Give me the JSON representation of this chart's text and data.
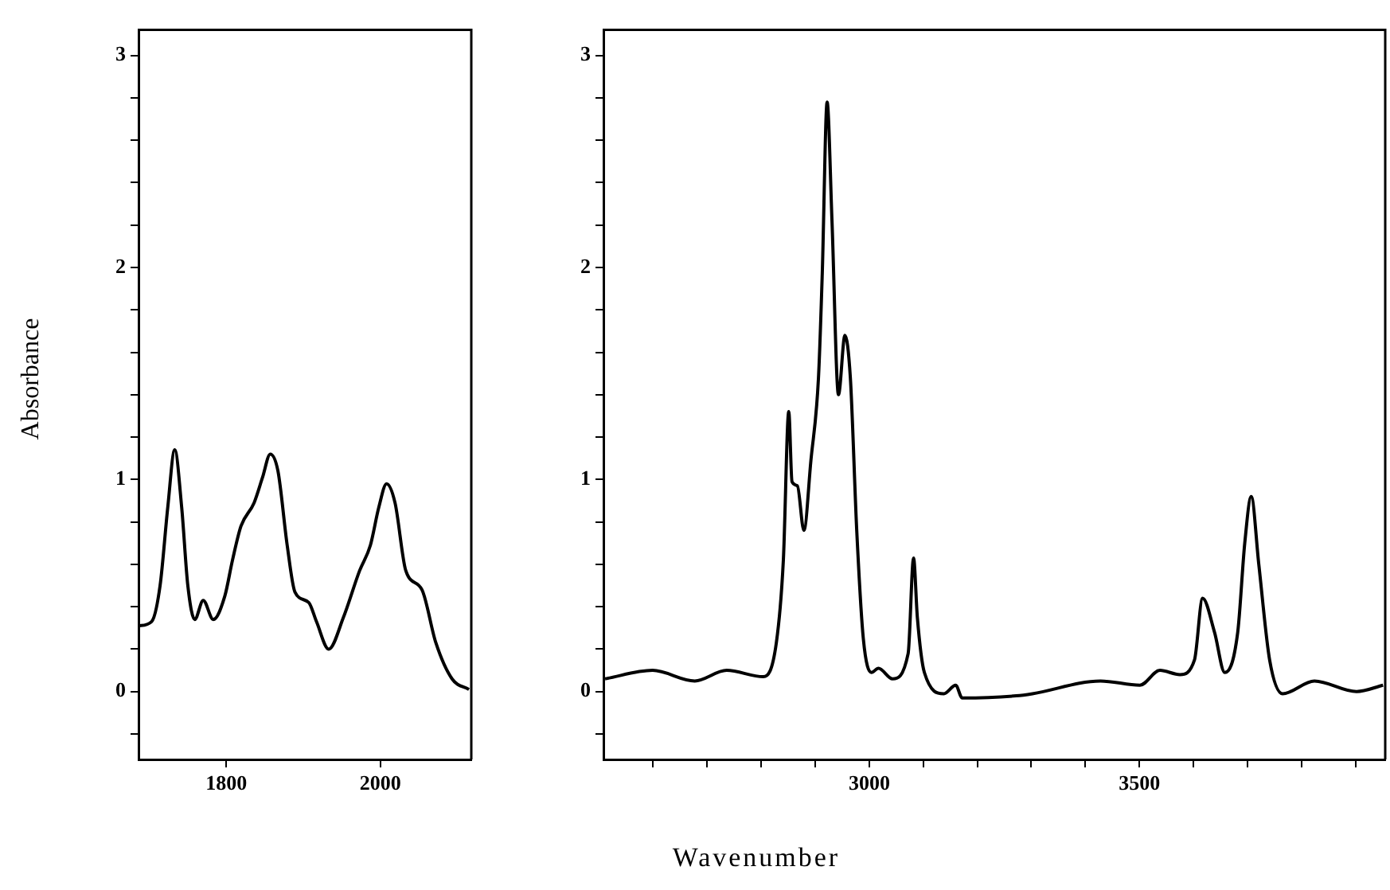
{
  "chart_data": [
    {
      "type": "line",
      "ylabel": "Absorbance",
      "color": "#000000",
      "marker": "none",
      "grid": false,
      "xlim": [
        1686,
        2118
      ],
      "xticks": [
        1800,
        2000
      ],
      "ylim": [
        -0.32,
        3.12
      ],
      "yticks": [
        {
          "value": -0.2,
          "label": null
        },
        0,
        {
          "value": 0.2,
          "label": null
        },
        {
          "value": 0.4,
          "label": null
        },
        {
          "value": 0.6,
          "label": null
        },
        {
          "value": 0.8,
          "label": null
        },
        1,
        {
          "value": 1.2,
          "label": null
        },
        {
          "value": 1.4,
          "label": null
        },
        {
          "value": 1.6,
          "label": null
        },
        {
          "value": 1.8,
          "label": null
        },
        2,
        {
          "value": 2.2,
          "label": null
        },
        {
          "value": 2.4,
          "label": null
        },
        {
          "value": 2.6,
          "label": null
        },
        {
          "value": 2.8,
          "label": null
        },
        3
      ],
      "x": [
        1686,
        1703,
        1714,
        1724,
        1733,
        1742,
        1750,
        1759,
        1770,
        1783,
        1798,
        1808,
        1819,
        1836,
        1847,
        1857,
        1867,
        1879,
        1889,
        1907,
        1917,
        1933,
        1952,
        1973,
        1987,
        1998,
        2008,
        2019,
        2033,
        2054,
        2072,
        2093,
        2115
      ],
      "values": [
        0.31,
        0.33,
        0.5,
        0.87,
        1.14,
        0.87,
        0.5,
        0.34,
        0.43,
        0.34,
        0.45,
        0.62,
        0.78,
        0.89,
        1.01,
        1.12,
        1.04,
        0.69,
        0.47,
        0.42,
        0.33,
        0.2,
        0.35,
        0.57,
        0.69,
        0.87,
        0.98,
        0.89,
        0.57,
        0.48,
        0.23,
        0.06,
        0.01
      ]
    },
    {
      "type": "line",
      "xlabel": "Wavenumber",
      "color": "#000000",
      "marker": "none",
      "grid": false,
      "xlim": [
        2508,
        3955
      ],
      "xticks": [
        {
          "value": 2600,
          "label": null
        },
        {
          "value": 2700,
          "label": null
        },
        {
          "value": 2800,
          "label": null
        },
        {
          "value": 2900,
          "label": null
        },
        3000,
        {
          "value": 3100,
          "label": null
        },
        {
          "value": 3200,
          "label": null
        },
        {
          "value": 3300,
          "label": null
        },
        {
          "value": 3400,
          "label": null
        },
        3500,
        {
          "value": 3600,
          "label": null
        },
        {
          "value": 3700,
          "label": null
        },
        {
          "value": 3800,
          "label": null
        },
        {
          "value": 3900,
          "label": null
        }
      ],
      "ylim": [
        -0.32,
        3.12
      ],
      "yticks": [
        {
          "value": -0.2,
          "label": null
        },
        0,
        {
          "value": 0.2,
          "label": null
        },
        {
          "value": 0.4,
          "label": null
        },
        {
          "value": 0.6,
          "label": null
        },
        {
          "value": 0.8,
          "label": null
        },
        1,
        {
          "value": 1.2,
          "label": null
        },
        {
          "value": 1.4,
          "label": null
        },
        {
          "value": 1.6,
          "label": null
        },
        {
          "value": 1.8,
          "label": null
        },
        2,
        {
          "value": 2.2,
          "label": null
        },
        {
          "value": 2.4,
          "label": null
        },
        {
          "value": 2.6,
          "label": null
        },
        {
          "value": 2.8,
          "label": null
        },
        3
      ],
      "x": [
        2511,
        2599,
        2677,
        2736,
        2804,
        2828,
        2841,
        2851,
        2857,
        2867,
        2879,
        2892,
        2906,
        2913,
        2922,
        2931,
        2943,
        2955,
        2965,
        2977,
        2989,
        3004,
        3017,
        3043,
        3072,
        3082,
        3089,
        3102,
        3138,
        3160,
        3172,
        3272,
        3302,
        3428,
        3501,
        3538,
        3575,
        3602,
        3617,
        3639,
        3658,
        3682,
        3695,
        3707,
        3721,
        3741,
        3765,
        3824,
        3902,
        3951
      ],
      "values": [
        0.06,
        0.1,
        0.05,
        0.1,
        0.07,
        0.23,
        0.62,
        1.32,
        0.99,
        0.97,
        0.76,
        1.09,
        1.48,
        1.97,
        2.78,
        2.22,
        1.4,
        1.68,
        1.48,
        0.75,
        0.25,
        0.09,
        0.11,
        0.06,
        0.18,
        0.63,
        0.35,
        0.09,
        -0.01,
        0.03,
        -0.03,
        -0.02,
        -0.01,
        0.05,
        0.03,
        0.1,
        0.08,
        0.15,
        0.44,
        0.28,
        0.09,
        0.28,
        0.7,
        0.92,
        0.6,
        0.15,
        -0.01,
        0.05,
        0.0,
        0.03
      ]
    }
  ]
}
